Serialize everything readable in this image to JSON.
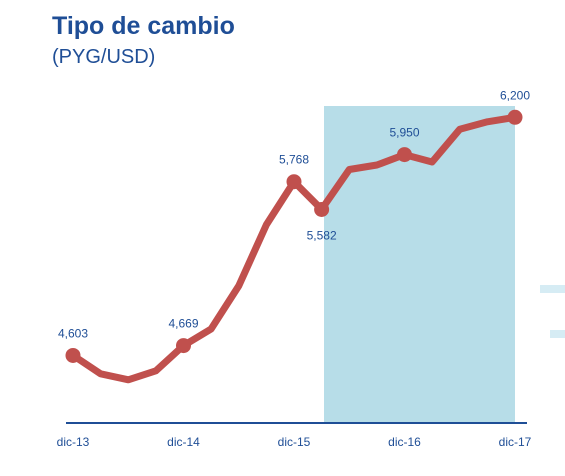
{
  "header": {
    "title": "Tipo de cambio",
    "subtitle": "(PYG/USD)"
  },
  "colors": {
    "line": "#c0504d",
    "shade": "#b7dde8",
    "text": "#1f4e96",
    "axis": "#1f4e96"
  },
  "chart_data": {
    "type": "line",
    "title": "Tipo de cambio",
    "subtitle": "(PYG/USD)",
    "xlabel": "",
    "ylabel": "",
    "categories": [
      "dic-13",
      "dic-14",
      "dic-15",
      "dic-16",
      "dic-17"
    ],
    "x": [
      "dic-13",
      "mar-14",
      "jun-14",
      "sep-14",
      "dic-14",
      "mar-15",
      "jun-15",
      "sep-15",
      "dic-15",
      "mar-16",
      "jun-16",
      "sep-16",
      "dic-16",
      "mar-17",
      "jun-17",
      "sep-17",
      "dic-17"
    ],
    "series": [
      {
        "values": [
          4603,
          4480,
          4440,
          4500,
          4669,
          4780,
          5070,
          5480,
          5768,
          5582,
          5850,
          5880,
          5950,
          5900,
          6120,
          6170,
          6200
        ]
      }
    ],
    "data_labels": [
      {
        "index": 0,
        "text": "4,603",
        "pos": "above"
      },
      {
        "index": 4,
        "text": "4,669",
        "pos": "above"
      },
      {
        "index": 8,
        "text": "5,768",
        "pos": "above"
      },
      {
        "index": 9,
        "text": "5,582",
        "pos": "below"
      },
      {
        "index": 12,
        "text": "5,950",
        "pos": "above"
      },
      {
        "index": 16,
        "text": "6,200",
        "pos": "above"
      }
    ],
    "markers_at": [
      0,
      4,
      8,
      9,
      12,
      16
    ],
    "shaded_range": [
      "dic-15",
      "dic-17"
    ],
    "ylim": [
      4150,
      6450
    ],
    "grid": false,
    "legend": "none"
  }
}
